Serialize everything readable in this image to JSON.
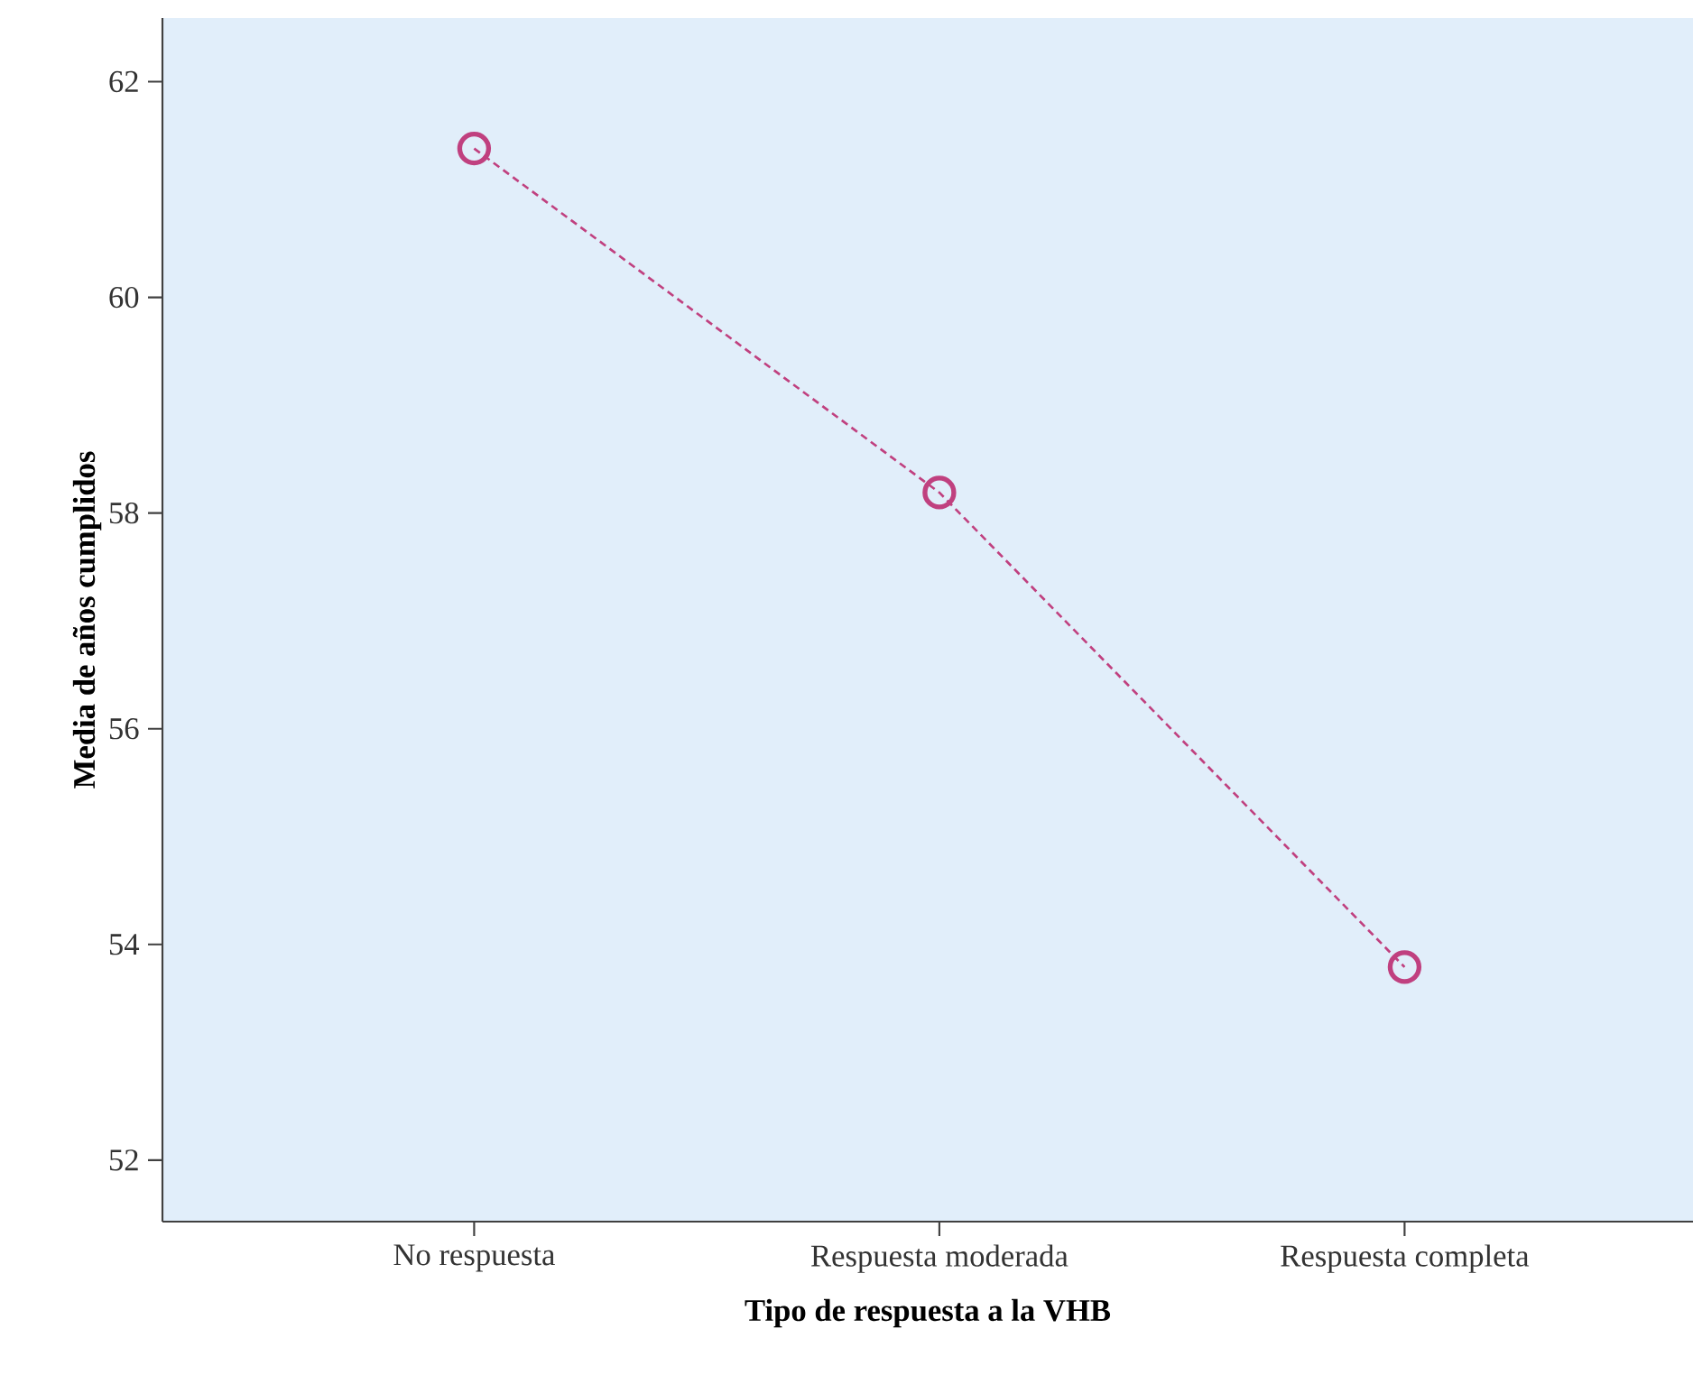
{
  "chart_data": {
    "type": "line",
    "xlabel": "Tipo de respuesta a la VHB",
    "ylabel": "Media de años cumplidos",
    "categories": [
      "No respuesta",
      "Respuesta moderada",
      "Respuesta completa"
    ],
    "series": [
      {
        "color": "#c0407f",
        "values": [
          61.38,
          58.19,
          53.79
        ]
      }
    ],
    "ylim": [
      51.43,
      62.59
    ],
    "yticks": [
      52,
      54,
      56,
      58,
      60,
      62
    ],
    "marker": "circle",
    "line_style": "dotted",
    "grid": false
  }
}
